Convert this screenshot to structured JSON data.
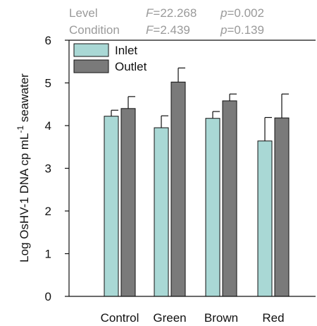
{
  "stats": [
    {
      "label": "Level",
      "f_symbol": "F",
      "f_value": "=22.268",
      "p_symbol": "p",
      "p_value": "=0.002"
    },
    {
      "label": "Condition",
      "f_symbol": "F",
      "f_value": "=2.439",
      "p_symbol": "p",
      "p_value": "=0.139"
    }
  ],
  "colors": {
    "inlet": "#a9d8d5",
    "outlet": "#7a7a7a",
    "stats_text": "#9a9a9a",
    "axis": "#111111"
  },
  "chart_data": {
    "type": "bar",
    "categories": [
      "Control",
      "Green",
      "Brown",
      "Red"
    ],
    "series": [
      {
        "name": "Inlet",
        "values": [
          4.22,
          3.95,
          4.17,
          3.64
        ],
        "errors": [
          0.14,
          0.28,
          0.16,
          0.55
        ]
      },
      {
        "name": "Outlet",
        "values": [
          4.4,
          5.02,
          4.58,
          4.18
        ],
        "errors": [
          0.28,
          0.33,
          0.16,
          0.56
        ]
      }
    ],
    "ylabel_main": "Log OsHV-1 DNA cp mL",
    "ylabel_sup": "-1",
    "ylabel_tail": " seawater",
    "xlabel": "",
    "ylim": [
      0,
      6
    ],
    "yticks": [
      "0",
      "1",
      "2",
      "3",
      "4",
      "5",
      "6"
    ],
    "legend_position": "top-left",
    "grid": false
  }
}
